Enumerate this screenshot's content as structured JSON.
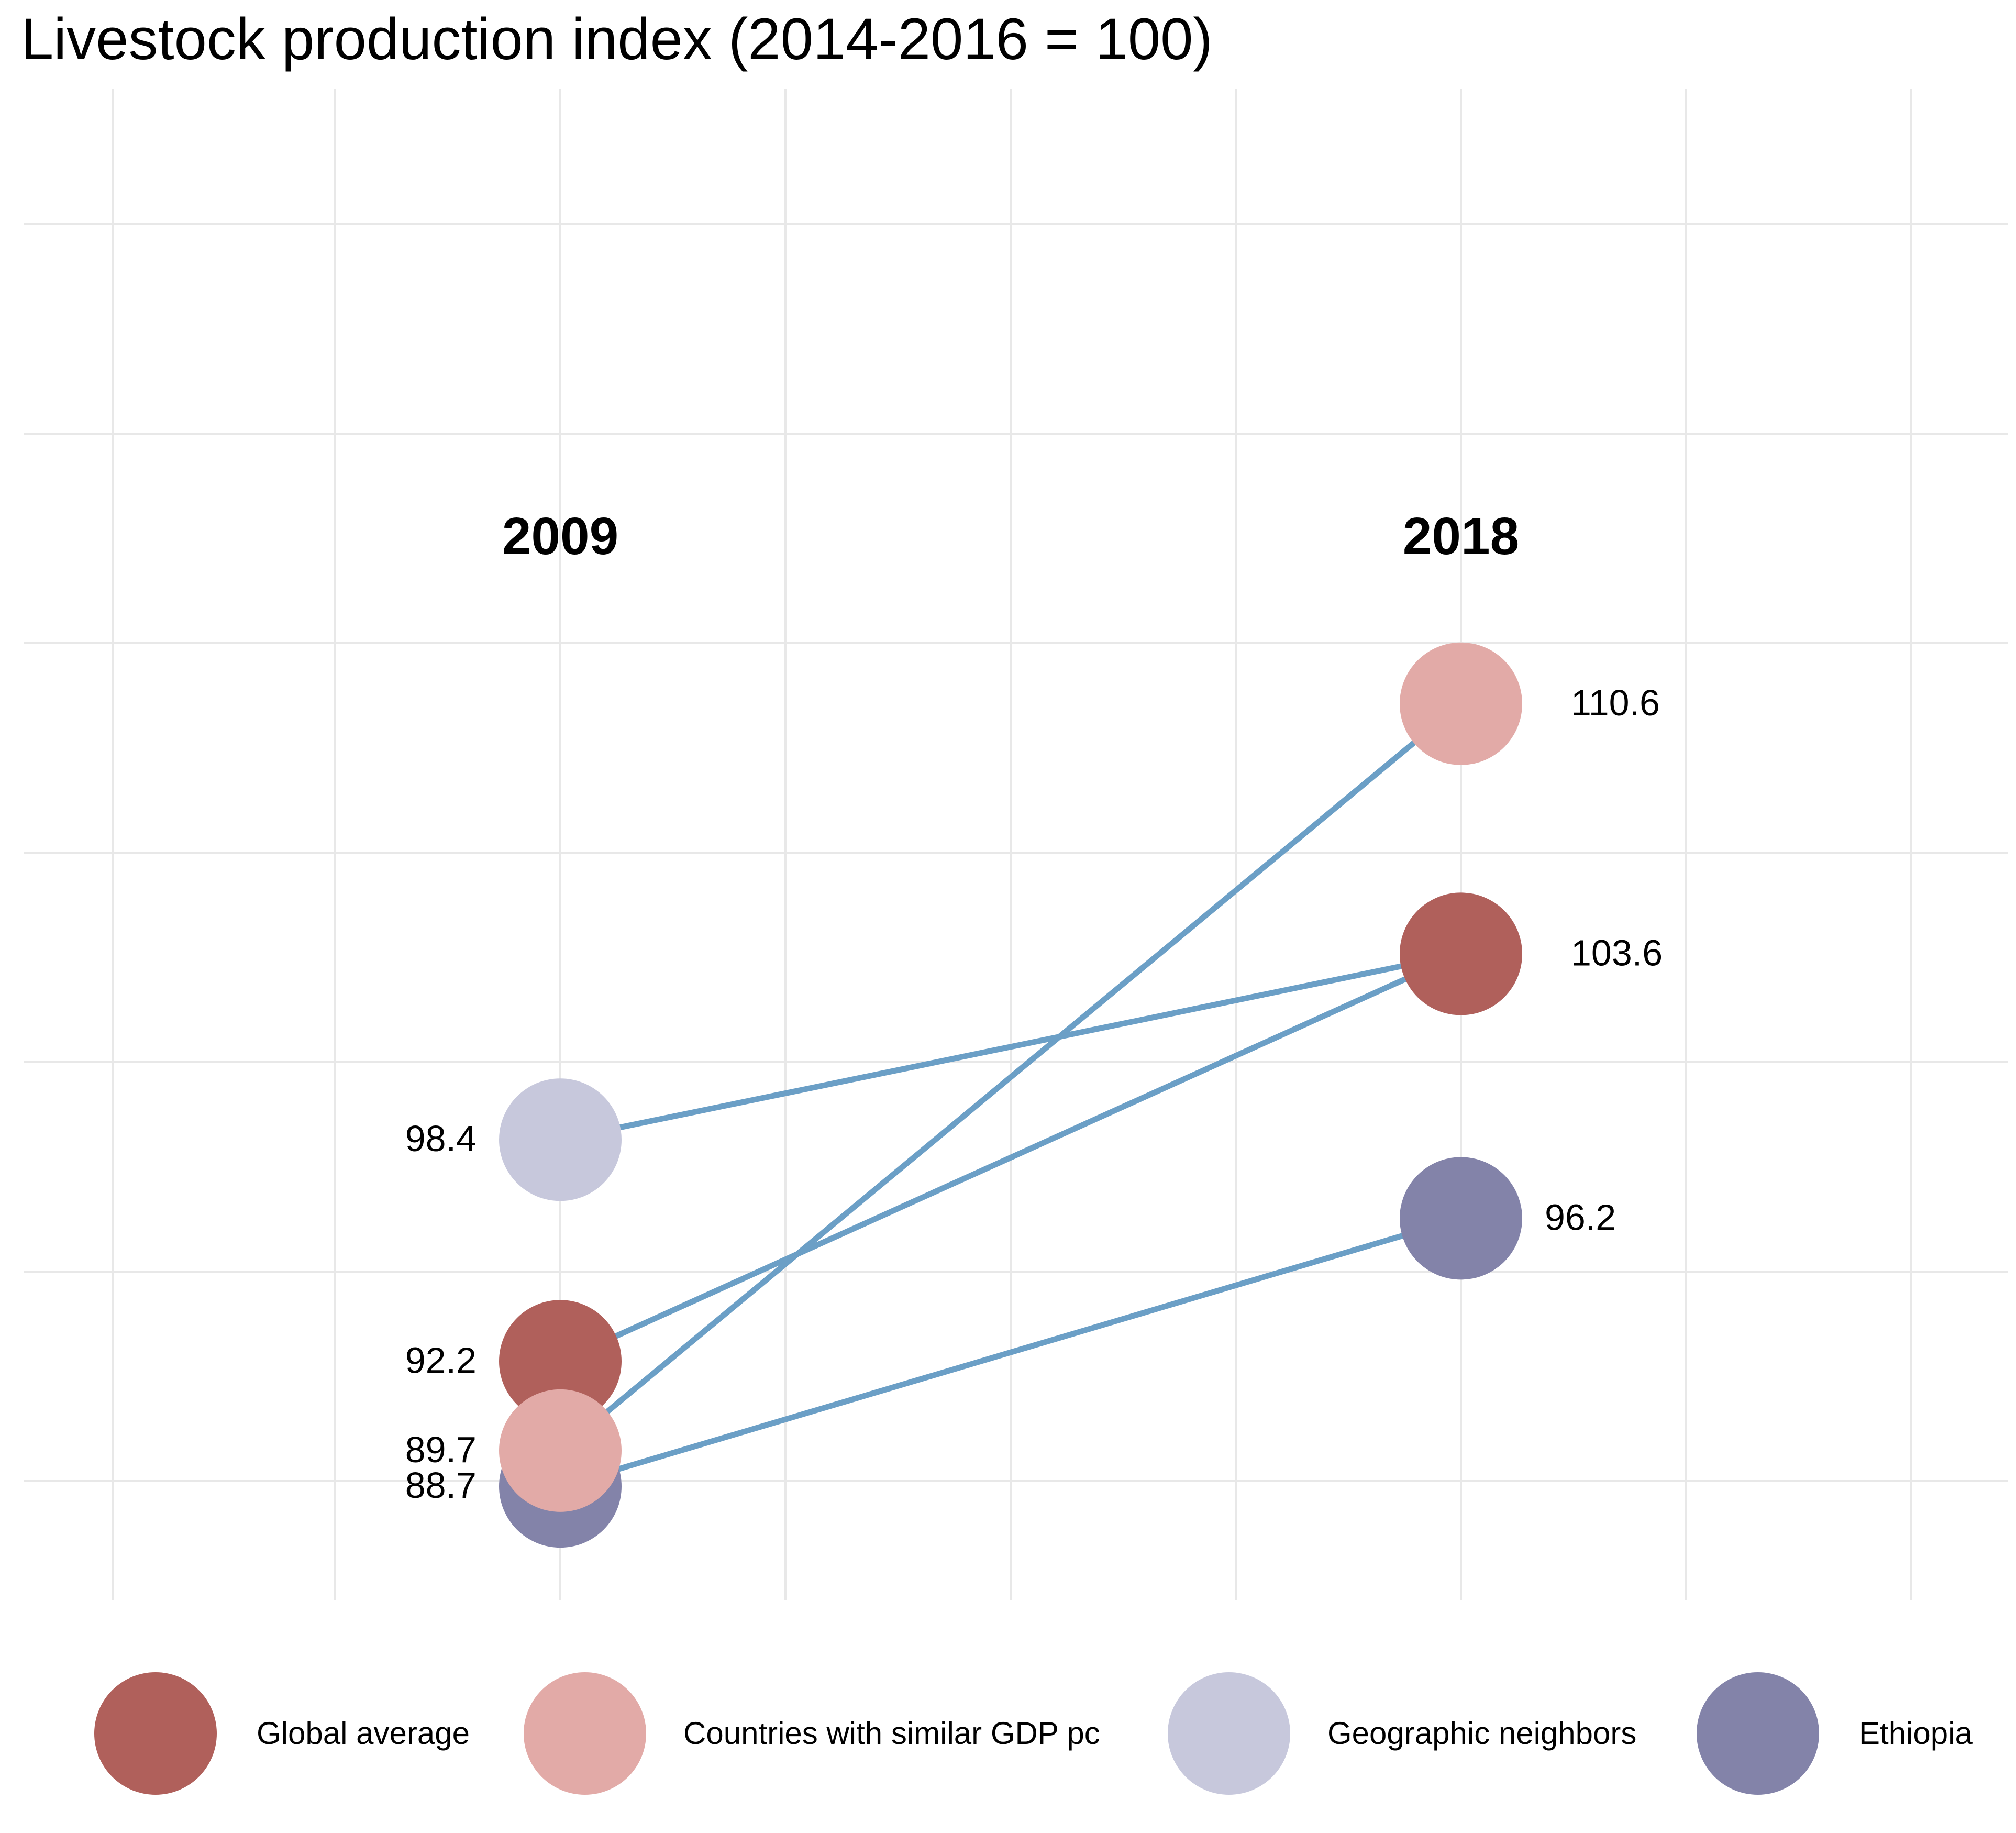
{
  "chart_data": {
    "type": "slope",
    "title": "Livestock production index (2014-2016 = 100)",
    "x": [
      "2009",
      "2018"
    ],
    "series": [
      {
        "name": "Global average",
        "values": [
          92.2,
          103.6
        ],
        "color": "#b0605b"
      },
      {
        "name": "Countries with similar GDP pc",
        "values": [
          89.7,
          110.6
        ],
        "color": "#e2aaa7"
      },
      {
        "name": "Geographic neighbors",
        "values": [
          98.4,
          103.6
        ],
        "color": "#c7c8dc"
      },
      {
        "name": "Ethiopia",
        "values": [
          88.7,
          96.2
        ],
        "color": "#8383a9"
      }
    ],
    "line_color": "#6b9fc6",
    "ylim": [
      87,
      125
    ],
    "grid": true,
    "legend_position": "bottom"
  }
}
